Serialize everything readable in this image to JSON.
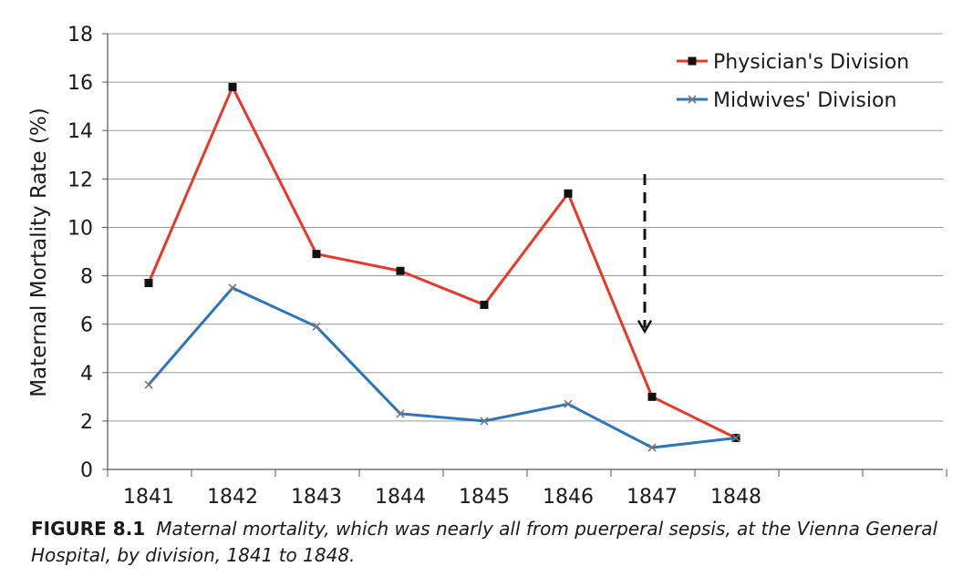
{
  "chart_data": {
    "type": "line",
    "title": "",
    "xlabel": "",
    "ylabel": "Maternal Mortality Rate (%)",
    "categories": [
      "1841",
      "1842",
      "1843",
      "1844",
      "1845",
      "1846",
      "1847",
      "1848"
    ],
    "ylim": [
      0,
      18
    ],
    "yticks": [
      0,
      2,
      4,
      6,
      8,
      10,
      12,
      14,
      16,
      18
    ],
    "grid": true,
    "legend_position": "top-right",
    "series": [
      {
        "name": "Physician's Division",
        "color": "#e8382b",
        "marker": "square",
        "values": [
          7.7,
          15.8,
          8.9,
          8.2,
          6.8,
          11.4,
          3.0,
          1.3
        ]
      },
      {
        "name": "Midwives' Division",
        "color": "#2e75b6",
        "marker": "x",
        "values": [
          3.5,
          7.5,
          5.9,
          2.3,
          2.0,
          2.7,
          0.9,
          1.3
        ]
      }
    ],
    "annotation": {
      "type": "dashed-down-arrow",
      "category": "1847",
      "from_value": 12.2,
      "to_value": 5.7
    }
  },
  "caption": {
    "label": "FIGURE 8.1",
    "text": "Maternal mortality, which was nearly all from puerperal sepsis, at the Vienna General Hospital, by division, 1841 to 1848."
  }
}
